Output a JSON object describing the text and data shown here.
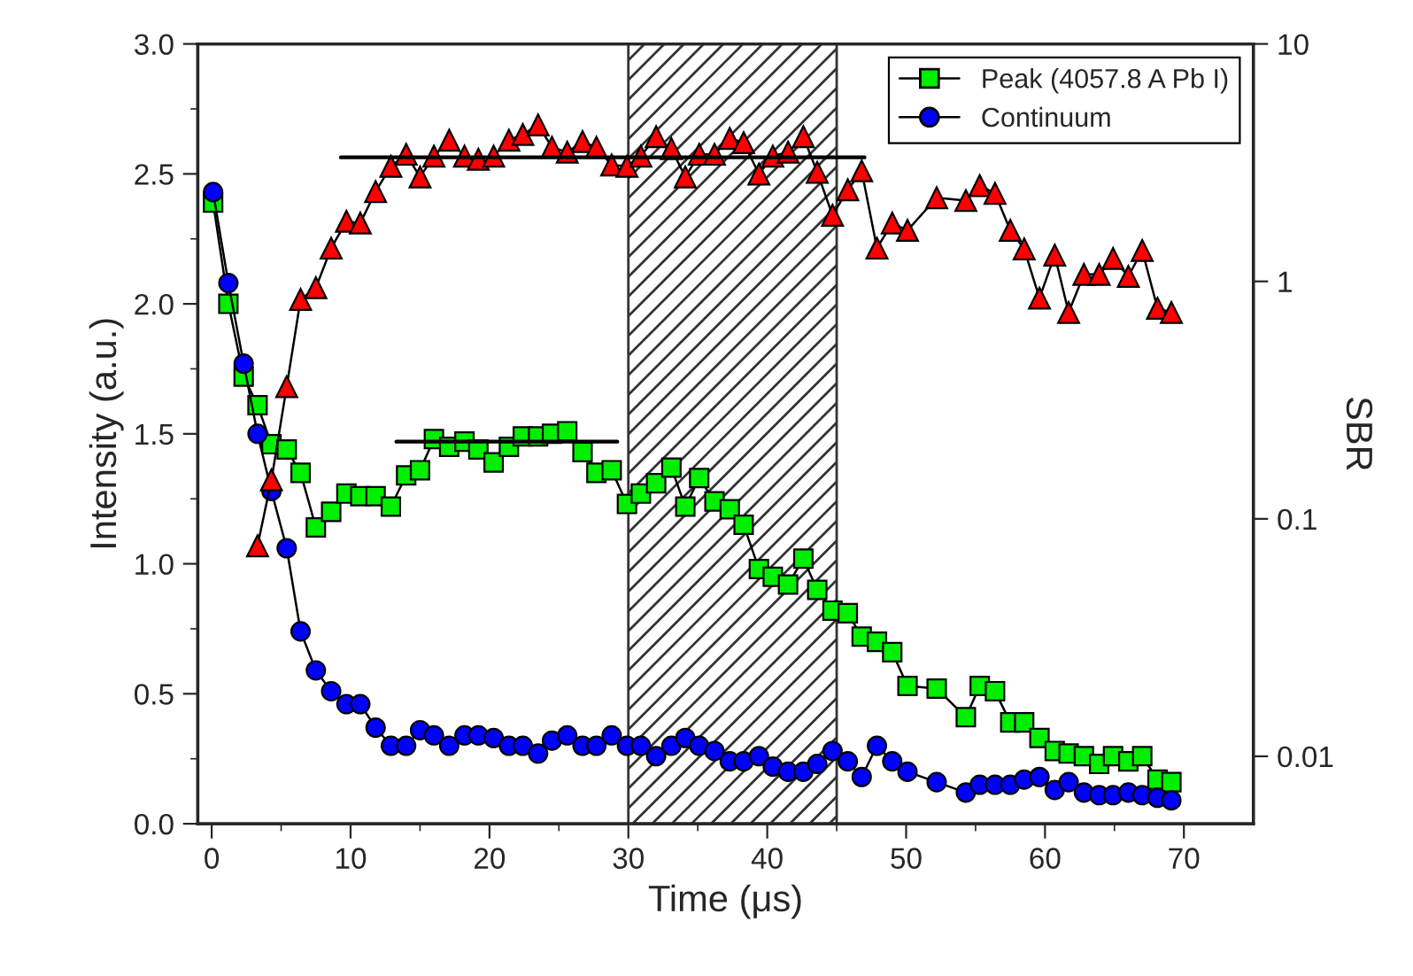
{
  "chart_data": {
    "type": "line",
    "xlabel": "Time (μs)",
    "ylabel": "Intensity (a.u.)",
    "y2label": "SBR",
    "xlim": [
      -1,
      75
    ],
    "ylim": [
      0,
      3
    ],
    "y2lim": [
      0.0052,
      10
    ],
    "log": "y2",
    "xticks": [
      0,
      {
        "value": 5,
        "label": null
      },
      10,
      {
        "value": 15,
        "label": null
      },
      20,
      {
        "value": 25,
        "label": null
      },
      30,
      {
        "value": 35,
        "label": null
      },
      40,
      {
        "value": 45,
        "label": null
      },
      50,
      {
        "value": 55,
        "label": null
      },
      60,
      {
        "value": 65,
        "label": null
      },
      70
    ],
    "yticks": [
      {
        "value": 0,
        "label": "0.0"
      },
      {
        "value": 0.25,
        "label": null
      },
      {
        "value": 0.5,
        "label": "0.5"
      },
      {
        "value": 0.75,
        "label": null
      },
      {
        "value": 1,
        "label": "1.0"
      },
      {
        "value": 1.25,
        "label": null
      },
      {
        "value": 1.5,
        "label": "1.5"
      },
      {
        "value": 1.75,
        "label": null
      },
      {
        "value": 2,
        "label": "2.0"
      },
      {
        "value": 2.25,
        "label": null
      },
      {
        "value": 2.5,
        "label": "2.5"
      },
      {
        "value": 2.75,
        "label": null
      },
      {
        "value": 3,
        "label": "3.0"
      }
    ],
    "y2ticks": [
      0.01,
      0.1,
      1,
      10
    ],
    "legend": "top right",
    "grid": false,
    "bands": [
      {
        "axis": "x",
        "from": 30,
        "to": 45
      }
    ],
    "series": [
      {
        "name": "Peak (4057.8 A Pb I)",
        "color": "#00ee00",
        "marker": "square",
        "x": [
          0.1,
          1.2,
          2.3,
          3.3,
          4.3,
          5.4,
          6.4,
          7.5,
          8.6,
          9.7,
          10.7,
          11.8,
          12.9,
          14.0,
          15.0,
          16.0,
          17.1,
          18.2,
          19.2,
          20.3,
          21.4,
          22.4,
          23.5,
          24.5,
          25.6,
          26.7,
          27.7,
          28.8,
          29.9,
          30.9,
          32.0,
          33.1,
          34.1,
          35.1,
          36.2,
          37.3,
          38.3,
          39.4,
          40.4,
          41.5,
          42.6,
          43.6,
          44.7,
          45.8,
          46.8,
          47.9,
          49.0,
          50.1,
          52.2,
          54.3,
          55.3,
          56.4,
          57.5,
          58.5,
          59.6,
          60.7,
          61.7,
          62.8,
          63.9,
          64.9,
          66.0,
          67.0,
          68.1,
          69.1
        ],
        "values": [
          2.39,
          2.0,
          1.72,
          1.61,
          1.46,
          1.44,
          1.35,
          1.14,
          1.2,
          1.27,
          1.26,
          1.26,
          1.22,
          1.34,
          1.36,
          1.48,
          1.45,
          1.47,
          1.44,
          1.39,
          1.45,
          1.49,
          1.49,
          1.5,
          1.51,
          1.43,
          1.35,
          1.36,
          1.23,
          1.27,
          1.31,
          1.37,
          1.22,
          1.33,
          1.24,
          1.21,
          1.15,
          0.98,
          0.95,
          0.92,
          1.02,
          0.9,
          0.82,
          0.81,
          0.72,
          0.7,
          0.66,
          0.53,
          0.52,
          0.41,
          0.53,
          0.51,
          0.39,
          0.39,
          0.33,
          0.28,
          0.27,
          0.26,
          0.23,
          0.26,
          0.24,
          0.26,
          0.17,
          0.16
        ]
      },
      {
        "name": "Continuum",
        "color": "#0000ff",
        "marker": "circle",
        "x": [
          0.1,
          1.2,
          2.3,
          3.3,
          4.3,
          5.4,
          6.4,
          7.5,
          8.6,
          9.7,
          10.7,
          11.8,
          12.9,
          14.0,
          15.0,
          16.0,
          17.1,
          18.2,
          19.2,
          20.3,
          21.4,
          22.4,
          23.5,
          24.5,
          25.6,
          26.7,
          27.7,
          28.8,
          29.9,
          30.9,
          32.0,
          33.1,
          34.1,
          35.1,
          36.2,
          37.3,
          38.3,
          39.4,
          40.4,
          41.5,
          42.6,
          43.6,
          44.7,
          45.8,
          46.8,
          47.9,
          49.0,
          50.1,
          52.2,
          54.3,
          55.3,
          56.4,
          57.5,
          58.5,
          59.6,
          60.7,
          61.7,
          62.8,
          63.9,
          64.9,
          66.0,
          67.0,
          68.1,
          69.1
        ],
        "values": [
          2.43,
          2.08,
          1.77,
          1.5,
          1.28,
          1.06,
          0.74,
          0.59,
          0.51,
          0.46,
          0.46,
          0.37,
          0.3,
          0.3,
          0.36,
          0.34,
          0.3,
          0.34,
          0.34,
          0.33,
          0.3,
          0.3,
          0.27,
          0.32,
          0.34,
          0.3,
          0.3,
          0.34,
          0.3,
          0.3,
          0.26,
          0.3,
          0.33,
          0.3,
          0.28,
          0.24,
          0.24,
          0.26,
          0.22,
          0.2,
          0.2,
          0.23,
          0.28,
          0.24,
          0.18,
          0.3,
          0.24,
          0.2,
          0.16,
          0.12,
          0.15,
          0.15,
          0.15,
          0.17,
          0.18,
          0.13,
          0.16,
          0.12,
          0.11,
          0.11,
          0.12,
          0.11,
          0.1,
          0.09
        ]
      },
      {
        "color": "#ff0000",
        "marker": "triangle",
        "axis": "y2",
        "x": [
          3.3,
          4.3,
          5.4,
          6.4,
          7.5,
          8.6,
          9.7,
          10.7,
          11.8,
          12.9,
          14.0,
          15.0,
          16.0,
          17.1,
          18.2,
          19.2,
          20.3,
          21.4,
          22.4,
          23.5,
          24.5,
          25.6,
          26.7,
          27.7,
          28.8,
          29.9,
          30.9,
          32.0,
          33.1,
          34.1,
          35.1,
          36.2,
          37.3,
          38.3,
          39.4,
          40.4,
          41.5,
          42.6,
          43.6,
          44.7,
          45.8,
          46.8,
          47.9,
          49.0,
          50.1,
          52.2,
          54.3,
          55.3,
          56.4,
          57.5,
          58.5,
          59.6,
          60.7,
          61.7,
          62.8,
          63.9,
          64.9,
          66.0,
          67.0,
          68.1,
          69.1
        ],
        "values": [
          0.077,
          0.146,
          0.36,
          0.84,
          0.94,
          1.38,
          1.79,
          1.76,
          2.39,
          3.05,
          3.43,
          2.75,
          3.37,
          3.93,
          3.37,
          3.27,
          3.37,
          3.93,
          4.16,
          4.56,
          3.67,
          3.5,
          3.88,
          3.67,
          3.09,
          3.05,
          3.37,
          4.07,
          3.62,
          2.75,
          3.43,
          3.43,
          4.0,
          3.84,
          2.83,
          3.37,
          3.5,
          4.07,
          2.88,
          1.9,
          2.43,
          2.92,
          1.38,
          1.76,
          1.64,
          2.25,
          2.19,
          2.53,
          2.35,
          1.64,
          1.37,
          0.85,
          1.29,
          0.74,
          1.07,
          1.07,
          1.25,
          1.05,
          1.35,
          0.77,
          0.74
        ]
      },
      {
        "type": "line",
        "color": "#000000",
        "marker": "none",
        "x": [
          13.3,
          29.2
        ],
        "values": [
          1.47,
          1.47
        ]
      },
      {
        "type": "line",
        "color": "#000000",
        "marker": "none",
        "axis": "y2",
        "x": [
          9.3,
          47.0
        ],
        "values": [
          3.33,
          3.33
        ]
      }
    ]
  }
}
